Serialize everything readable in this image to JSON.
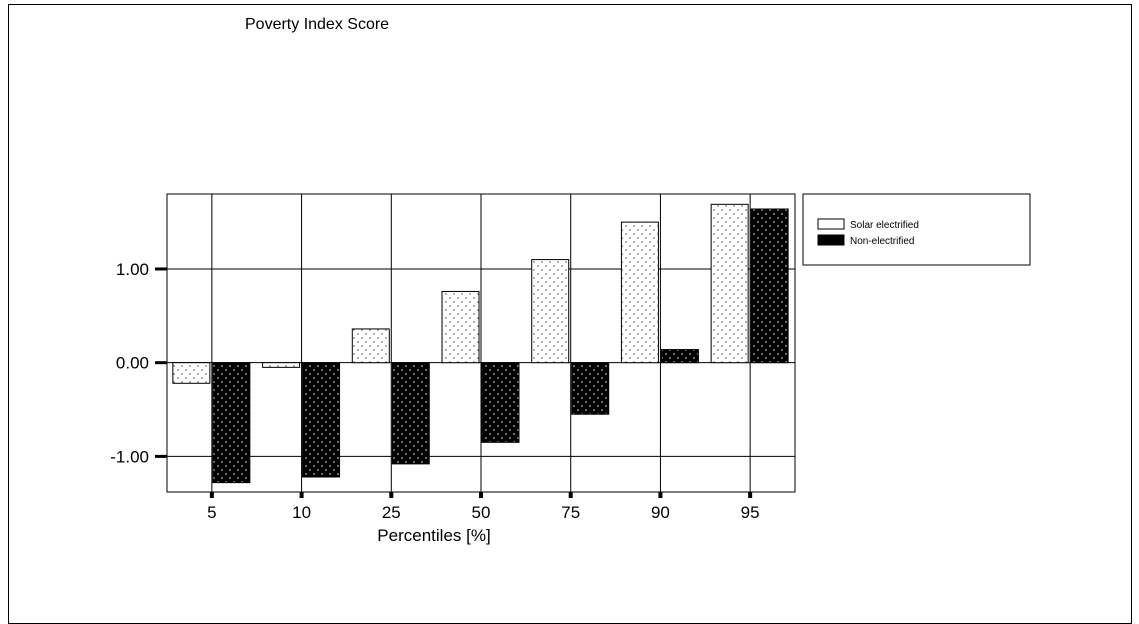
{
  "chart_data": {
    "type": "bar",
    "title": "Poverty Index Score",
    "xlabel": "Percentiles [%]",
    "ylabel": "",
    "categories": [
      "5",
      "10",
      "25",
      "50",
      "75",
      "90",
      "95"
    ],
    "series": [
      {
        "name": "Solar electrified",
        "values": [
          -0.22,
          -0.05,
          0.36,
          0.76,
          1.1,
          1.5,
          1.69
        ],
        "fill": "#ffffff",
        "dot": "#777777"
      },
      {
        "name": "Non-electrified",
        "values": [
          -1.28,
          -1.22,
          -1.08,
          -0.85,
          -0.55,
          0.14,
          1.64
        ],
        "fill": "#000000",
        "dot": "#bbbbbb"
      }
    ],
    "ylim": [
      -1.38,
      1.8
    ],
    "yticks": [
      {
        "value": -1.0,
        "label": "-1.00"
      },
      {
        "value": 0.0,
        "label": "0.00"
      },
      {
        "value": 1.0,
        "label": "1.00"
      }
    ],
    "grid": true,
    "legend_position": "right"
  }
}
